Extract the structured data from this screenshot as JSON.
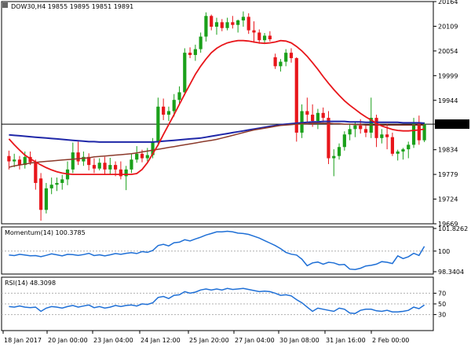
{
  "colors": {
    "bull": "#1aa01a",
    "bear": "#e8161b",
    "ma_fast": "#e8161b",
    "ma_mid": "#8b3a2b",
    "ma_slow": "#1f27a8",
    "indicator": "#1e6fd6",
    "price_line": "#000000",
    "grid": "#b0b0b0",
    "label_bg": "#000000",
    "label_fg": "#ffffff"
  },
  "header": {
    "title": "DOW30,H4  19855 19895 19851 19891"
  },
  "chart_data": [
    {
      "type": "candlestick",
      "title": "DOW30,H4  19855 19895 19851 19891",
      "ylim": [
        19669,
        20164
      ],
      "y_ticks": [
        "20164",
        "20109",
        "20054",
        "19999",
        "19944",
        "19891",
        "19834",
        "19779",
        "19724",
        "19669"
      ],
      "current_price": "19891",
      "x_labels": [
        "18 Jan 2017",
        "20 Jan 00:00",
        "23 Jan 04:00",
        "24 Jan 12:00",
        "25 Jan 20:00",
        "27 Jan 04:00",
        "30 Jan 08:00",
        "31 Jan 16:00",
        "2 Feb 00:00"
      ],
      "candles": [
        [
          19820,
          19832,
          19790,
          19808
        ],
        [
          19808,
          19825,
          19795,
          19812
        ],
        [
          19812,
          19820,
          19790,
          19800
        ],
        [
          19800,
          19830,
          19792,
          19818
        ],
        [
          19818,
          19830,
          19800,
          19806
        ],
        [
          19806,
          19812,
          19745,
          19760
        ],
        [
          19770,
          19782,
          19676,
          19700
        ],
        [
          19700,
          19760,
          19692,
          19748
        ],
        [
          19748,
          19772,
          19735,
          19756
        ],
        [
          19756,
          19772,
          19742,
          19760
        ],
        [
          19760,
          19778,
          19745,
          19768
        ],
        [
          19768,
          19808,
          19755,
          19790
        ],
        [
          19790,
          19850,
          19782,
          19828
        ],
        [
          19828,
          19852,
          19800,
          19808
        ],
        [
          19808,
          19830,
          19798,
          19818
        ],
        [
          19818,
          19826,
          19788,
          19800
        ],
        [
          19800,
          19815,
          19782,
          19792
        ],
        [
          19792,
          19815,
          19788,
          19805
        ],
        [
          19805,
          19818,
          19780,
          19790
        ],
        [
          19790,
          19816,
          19778,
          19800
        ],
        [
          19800,
          19808,
          19775,
          19790
        ],
        [
          19790,
          19808,
          19768,
          19775
        ],
        [
          19775,
          19798,
          19744,
          19790
        ],
        [
          19790,
          19826,
          19782,
          19812
        ],
        [
          19812,
          19842,
          19805,
          19825
        ],
        [
          19825,
          19834,
          19806,
          19815
        ],
        [
          19815,
          19838,
          19808,
          19822
        ],
        [
          19822,
          19860,
          19815,
          19850
        ],
        [
          19850,
          19950,
          19842,
          19930
        ],
        [
          19930,
          19948,
          19900,
          19912
        ],
        [
          19912,
          19930,
          19898,
          19920
        ],
        [
          19920,
          19958,
          19908,
          19945
        ],
        [
          19945,
          19975,
          19935,
          19962
        ],
        [
          19962,
          20060,
          19955,
          20050
        ],
        [
          20050,
          20062,
          20038,
          20045
        ],
        [
          20045,
          20068,
          20032,
          20058
        ],
        [
          20058,
          20095,
          20050,
          20086
        ],
        [
          20086,
          20140,
          20075,
          20132
        ],
        [
          20132,
          20135,
          20100,
          20108
        ],
        [
          20108,
          20128,
          20090,
          20118
        ],
        [
          20118,
          20125,
          20098,
          20105
        ],
        [
          20105,
          20128,
          20100,
          20118
        ],
        [
          20118,
          20132,
          20104,
          20112
        ],
        [
          20112,
          20124,
          20095,
          20122
        ],
        [
          20122,
          20142,
          20108,
          20130
        ],
        [
          20130,
          20138,
          20092,
          20100
        ],
        [
          20100,
          20120,
          20072,
          20095
        ],
        [
          20095,
          20102,
          20070,
          20078
        ],
        [
          20078,
          20094,
          20070,
          20088
        ],
        [
          20088,
          20098,
          20075,
          20080
        ],
        [
          20040,
          20048,
          20014,
          20020
        ],
        [
          20020,
          20036,
          20008,
          20030
        ],
        [
          20030,
          20058,
          20020,
          20050
        ],
        [
          20050,
          20060,
          20028,
          20038
        ],
        [
          20038,
          20040,
          19852,
          19872
        ],
        [
          19872,
          19935,
          19860,
          19920
        ],
        [
          19920,
          19950,
          19895,
          19912
        ],
        [
          19912,
          19935,
          19885,
          19898
        ],
        [
          19898,
          19925,
          19880,
          19916
        ],
        [
          19916,
          19928,
          19895,
          19905
        ],
        [
          19905,
          19920,
          19802,
          19815
        ],
        [
          19815,
          19835,
          19775,
          19820
        ],
        [
          19820,
          19848,
          19812,
          19840
        ],
        [
          19840,
          19875,
          19832,
          19868
        ],
        [
          19868,
          19890,
          19855,
          19880
        ],
        [
          19880,
          19895,
          19862,
          19888
        ],
        [
          19888,
          19902,
          19870,
          19880
        ],
        [
          19880,
          19890,
          19862,
          19872
        ],
        [
          19872,
          19950,
          19860,
          19905
        ],
        [
          19905,
          19912,
          19840,
          19860
        ],
        [
          19860,
          19880,
          19848,
          19868
        ],
        [
          19868,
          19892,
          19835,
          19862
        ],
        [
          19862,
          19872,
          19820,
          19825
        ],
        [
          19825,
          19834,
          19810,
          19830
        ],
        [
          19830,
          19838,
          19812,
          19835
        ],
        [
          19835,
          19852,
          19815,
          19845
        ],
        [
          19845,
          19905,
          19838,
          19895
        ],
        [
          19895,
          19910,
          19845,
          19855
        ],
        [
          19855,
          19895,
          19851,
          19891
        ]
      ],
      "ma_fast": [
        19858,
        19845,
        19833,
        19822,
        19814,
        19807,
        19800,
        19794,
        19789,
        19785,
        19782,
        19780,
        19779,
        19779,
        19779,
        19779,
        19779,
        19779,
        19779,
        19779,
        19779,
        19779,
        19779,
        19779,
        19781,
        19790,
        19805,
        19825,
        19845,
        19868,
        19890,
        19912,
        19935,
        19958,
        19980,
        20002,
        20020,
        20036,
        20050,
        20060,
        20067,
        20072,
        20075,
        20077,
        20077,
        20076,
        20074,
        20072,
        20071,
        20072,
        20074,
        20077,
        20076,
        20072,
        20064,
        20054,
        20042,
        20028,
        20013,
        19997,
        19982,
        19968,
        19955,
        19943,
        19933,
        19924,
        19915,
        19907,
        19900,
        19893,
        19887,
        19883,
        19879,
        19877,
        19876,
        19876,
        19877,
        19878,
        19880
      ],
      "ma_mid": [
        19795,
        19798,
        19800,
        19802,
        19804,
        19806,
        19807,
        19808,
        19809,
        19810,
        19811,
        19812,
        19813,
        19814,
        19815,
        19816,
        19818,
        19819,
        19820,
        19821,
        19822,
        19823,
        19824,
        19825,
        19827,
        19829,
        19831,
        19833,
        19835,
        19837,
        19839,
        19841,
        19843,
        19845,
        19847,
        19849,
        19851,
        19853,
        19855,
        19857,
        19860,
        19863,
        19866,
        19869,
        19872,
        19875,
        19878,
        19880,
        19882,
        19884,
        19886,
        19888,
        19889,
        19890,
        19891,
        19892,
        19892,
        19893,
        19893,
        19893,
        19893,
        19892,
        19892,
        19891,
        19891,
        19890,
        19890,
        19889,
        19889,
        19889,
        19889,
        19889,
        19889,
        19889,
        19889,
        19889,
        19889,
        19889,
        19889
      ],
      "ma_slow": [
        19867,
        19866,
        19865,
        19864,
        19863,
        19862,
        19861,
        19860,
        19859,
        19858,
        19857,
        19856,
        19855,
        19854,
        19853,
        19852,
        19852,
        19851,
        19851,
        19851,
        19851,
        19851,
        19851,
        19851,
        19851,
        19851,
        19851,
        19851,
        19852,
        19853,
        19854,
        19855,
        19856,
        19857,
        19858,
        19859,
        19860,
        19862,
        19864,
        19866,
        19868,
        19870,
        19872,
        19874,
        19876,
        19878,
        19880,
        19882,
        19884,
        19886,
        19888,
        19890,
        19891,
        19892,
        19893,
        19894,
        19895,
        19896,
        19896,
        19897,
        19897,
        19897,
        19897,
        19897,
        19896,
        19896,
        19896,
        19895,
        19895,
        19895,
        19895,
        19895,
        19895,
        19895,
        19894,
        19894,
        19894,
        19894,
        19893
      ]
    },
    {
      "type": "line",
      "title": "Momentum(14) 100.3785",
      "ylim": [
        98.15,
        101.95
      ],
      "y_ticks": [
        "101.8262",
        "100",
        "98.3404"
      ],
      "reference_level": 100,
      "values": [
        99.68,
        99.64,
        99.74,
        99.68,
        99.62,
        99.64,
        99.55,
        99.66,
        99.78,
        99.7,
        99.62,
        99.74,
        99.72,
        99.66,
        99.72,
        99.82,
        99.64,
        99.7,
        99.62,
        99.7,
        99.8,
        99.74,
        99.82,
        99.88,
        99.8,
        99.96,
        99.9,
        100.05,
        100.45,
        100.55,
        100.42,
        100.68,
        100.72,
        100.92,
        100.82,
        100.98,
        101.12,
        101.3,
        101.42,
        101.55,
        101.55,
        101.6,
        101.55,
        101.45,
        101.42,
        101.35,
        101.2,
        101.05,
        100.85,
        100.65,
        100.45,
        100.2,
        99.9,
        99.75,
        99.68,
        99.35,
        98.82,
        99.05,
        99.12,
        98.95,
        99.1,
        99.05,
        98.9,
        98.92,
        98.55,
        98.52,
        98.62,
        98.8,
        98.85,
        98.95,
        99.15,
        99.1,
        99.0,
        99.62,
        99.4,
        99.55,
        99.82,
        99.65,
        100.38
      ]
    },
    {
      "type": "line",
      "title": "RSI(14) 48.3098",
      "ylim": [
        0,
        100
      ],
      "y_ticks": [
        "70",
        "50",
        "30"
      ],
      "levels": [
        70,
        50,
        30
      ],
      "values": [
        45,
        44,
        46,
        44,
        43,
        44,
        36,
        42,
        45,
        44,
        42,
        45,
        47,
        44,
        46,
        48,
        43,
        45,
        42,
        44,
        47,
        45,
        47,
        48,
        46,
        50,
        49,
        52,
        62,
        64,
        60,
        66,
        67,
        73,
        70,
        72,
        76,
        78,
        76,
        78,
        76,
        79,
        77,
        78,
        79,
        77,
        75,
        73,
        74,
        73,
        70,
        66,
        67,
        65,
        58,
        52,
        44,
        36,
        42,
        40,
        38,
        36,
        42,
        40,
        33,
        32,
        38,
        40,
        40,
        37,
        36,
        38,
        35,
        35,
        36,
        38,
        44,
        41,
        48
      ]
    }
  ]
}
